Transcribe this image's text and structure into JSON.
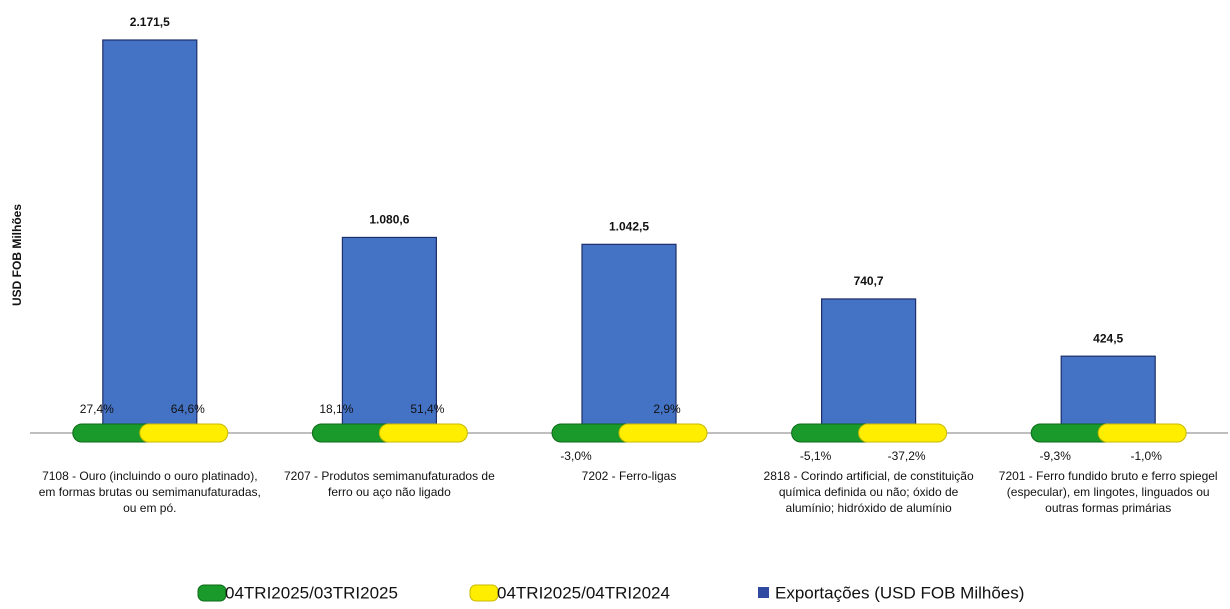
{
  "chart_data": {
    "type": "bar",
    "y_label": "USD FOB Milhões",
    "categories": [
      "7108 - Ouro (incluindo o ouro platinado), em formas brutas ou semimanufaturadas, ou em pó.",
      "7207 - Produtos semimanufaturados de ferro ou aço não ligado",
      "7202 - Ferro-ligas",
      "2818 - Corindo artificial, de constituição química definida ou não; óxido de alumínio; hidróxido de alumínio",
      "7201 - Ferro fundido bruto e ferro spiegel (especular), em lingotes, linguados ou outras formas primárias"
    ],
    "series": [
      {
        "name": "04TRI2025/03TRI2025",
        "color": "#1a9a2a",
        "values": [
          27.4,
          18.1,
          -3.0,
          -5.1,
          -9.3
        ],
        "value_labels": [
          "27,4%",
          "18,1%",
          "-3,0%",
          "-5,1%",
          "-9,3%"
        ]
      },
      {
        "name": "04TRI2025/04TRI2024",
        "color": "#ffee00",
        "values": [
          64.6,
          51.4,
          2.9,
          -37.2,
          -1.0
        ],
        "value_labels": [
          "64,6%",
          "51,4%",
          "2,9%",
          "-37,2%",
          "-1,0%"
        ]
      },
      {
        "name": "Exportações (USD FOB Milhões)",
        "color": "#4472c4",
        "values": [
          2171.5,
          1080.6,
          1042.5,
          740.7,
          424.5
        ],
        "value_labels": [
          "2.171,5",
          "1.080,6",
          "1.042,5",
          "740,7",
          "424,5"
        ]
      }
    ]
  }
}
